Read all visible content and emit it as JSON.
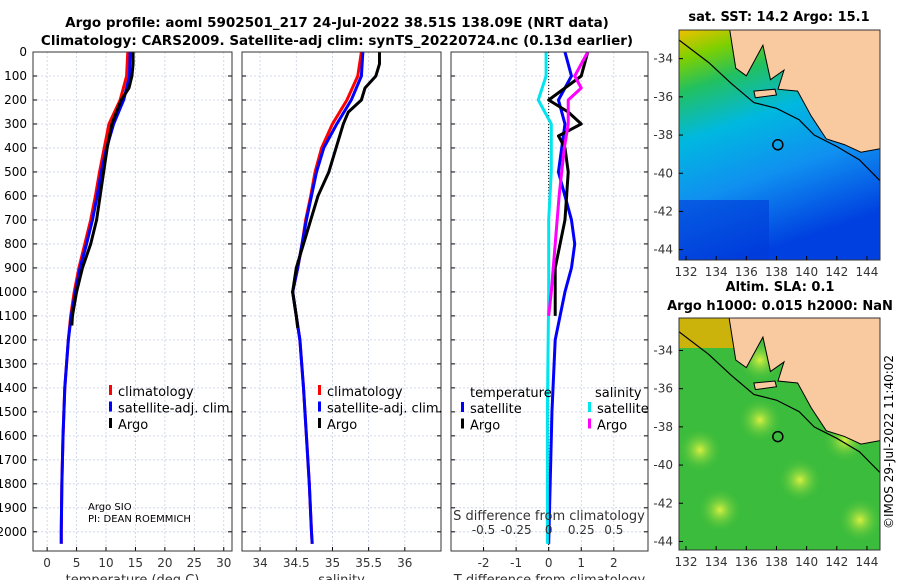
{
  "title_line1": "Argo profile: aoml 5902501_217 24-Jul-2022 38.51S 138.09E (NRT data)",
  "title_line2": "Climatology: CARS2009. Satellite-adj clim: synTS_20220724.nc (0.13d earlier)",
  "colors": {
    "climatology": "#ff0000",
    "satellite": "#0000ff",
    "argo": "#000000",
    "s_satellite": "#00e5ee",
    "s_argo": "#ff00ff",
    "land": "#f9c9a0"
  },
  "chart_data": [
    {
      "type": "line",
      "id": "temperature",
      "xlabel": "temperature (deg C)",
      "ylabel": "",
      "xlim": [
        -2.4,
        31.4
      ],
      "ylim": [
        2080,
        0
      ],
      "xticks": [
        0,
        5,
        10,
        15,
        20,
        25,
        30
      ],
      "yticks": [
        0,
        100,
        200,
        300,
        400,
        500,
        600,
        700,
        800,
        900,
        1000,
        1100,
        1200,
        1300,
        1400,
        1500,
        1600,
        1700,
        1800,
        1900,
        2000
      ],
      "legend": [
        "climatology",
        "satellite-adj. clim.",
        "Argo"
      ],
      "annotation": [
        "Argo SIO",
        "PI: DEAN ROEMMICH"
      ],
      "series": [
        {
          "name": "climatology",
          "color": "#ff0000",
          "depth": [
            0,
            100,
            200,
            300,
            400,
            500,
            600,
            700,
            800,
            900,
            1000,
            1100,
            1200,
            1400,
            1600,
            1800,
            2000,
            2050
          ],
          "values": [
            13.7,
            13.5,
            12.4,
            10.5,
            9.7,
            8.9,
            8.2,
            7.4,
            6.4,
            5.4,
            4.6,
            4.0,
            3.6,
            3.0,
            2.7,
            2.5,
            2.4,
            2.4
          ]
        },
        {
          "name": "satellite-adj. clim.",
          "color": "#0000ff",
          "depth": [
            0,
            100,
            200,
            300,
            400,
            500,
            600,
            700,
            800,
            900,
            1000,
            1100,
            1200,
            1400,
            1600,
            1800,
            2000,
            2050
          ],
          "values": [
            14.1,
            14.0,
            13.0,
            11.3,
            10.1,
            9.2,
            8.5,
            7.7,
            6.7,
            5.6,
            4.8,
            4.1,
            3.6,
            3.0,
            2.7,
            2.5,
            2.4,
            2.4
          ]
        },
        {
          "name": "Argo",
          "color": "#000000",
          "depth": [
            0,
            50,
            100,
            150,
            200,
            250,
            300,
            400,
            500,
            600,
            700,
            800,
            900,
            1000,
            1100,
            1140
          ],
          "values": [
            14.6,
            14.6,
            14.4,
            13.9,
            12.6,
            11.8,
            11.0,
            10.2,
            9.6,
            9.0,
            8.4,
            7.4,
            6.0,
            5.0,
            4.3,
            4.2
          ]
        }
      ]
    },
    {
      "type": "line",
      "id": "salinity",
      "xlabel": "salinity",
      "ylabel": "",
      "xlim": [
        33.75,
        36.5
      ],
      "ylim": [
        2080,
        0
      ],
      "xticks": [
        34,
        34.5,
        35,
        35.5,
        36
      ],
      "legend": [
        "climatology",
        "satellite-adj. clim.",
        "Argo"
      ],
      "series": [
        {
          "name": "climatology",
          "color": "#ff0000",
          "depth": [
            0,
            100,
            200,
            300,
            400,
            500,
            600,
            700,
            800,
            900,
            1000,
            1100,
            1200,
            1400,
            1600,
            1800,
            2000,
            2050
          ],
          "values": [
            35.4,
            35.35,
            35.2,
            35.0,
            34.85,
            34.76,
            34.7,
            34.63,
            34.58,
            34.52,
            34.45,
            34.5,
            34.55,
            34.6,
            34.64,
            34.68,
            34.71,
            34.72
          ]
        },
        {
          "name": "satellite-adj. clim.",
          "color": "#0000ff",
          "depth": [
            0,
            100,
            200,
            300,
            400,
            500,
            600,
            700,
            800,
            900,
            1000,
            1100,
            1200,
            1400,
            1600,
            1800,
            2000,
            2050
          ],
          "values": [
            35.42,
            35.4,
            35.26,
            35.06,
            34.88,
            34.78,
            34.71,
            34.64,
            34.58,
            34.52,
            34.45,
            34.5,
            34.55,
            34.6,
            34.64,
            34.68,
            34.71,
            34.72
          ]
        },
        {
          "name": "Argo",
          "color": "#000000",
          "depth": [
            0,
            50,
            100,
            150,
            200,
            250,
            300,
            400,
            500,
            600,
            700,
            800,
            900,
            1000,
            1100,
            1150
          ],
          "values": [
            35.65,
            35.65,
            35.6,
            35.45,
            35.4,
            35.22,
            35.15,
            35.05,
            34.95,
            34.8,
            34.7,
            34.6,
            34.5,
            34.45,
            34.5,
            34.52
          ]
        }
      ]
    },
    {
      "type": "line",
      "id": "difference",
      "xlabel": "T difference from climatology",
      "x2label": "S difference from climatology",
      "xlim": [
        -3,
        3.05
      ],
      "ylim": [
        2080,
        0
      ],
      "xticks": [
        -2,
        -1,
        0,
        1,
        2
      ],
      "x2ticks": [
        -0.5,
        -0.25,
        0,
        0.25,
        0.5
      ],
      "legend_temperature": {
        "title": "temperature",
        "items": [
          "satellite",
          "Argo"
        ]
      },
      "legend_salinity": {
        "title": "salinity",
        "items": [
          "satellite",
          "Argo"
        ]
      },
      "series": [
        {
          "name": "T satellite",
          "color": "#0000ff",
          "depth": [
            0,
            100,
            200,
            300,
            400,
            500,
            600,
            700,
            800,
            900,
            1000,
            1200,
            1500,
            2050
          ],
          "values": [
            0.5,
            0.7,
            0.3,
            0.5,
            0.4,
            0.3,
            0.5,
            0.7,
            0.8,
            0.7,
            0.5,
            0.2,
            0.1,
            0.0
          ]
        },
        {
          "name": "T Argo",
          "color": "#000000",
          "depth": [
            0,
            50,
            100,
            200,
            250,
            300,
            350,
            400,
            500,
            700,
            900,
            1100
          ],
          "values": [
            1.2,
            1.1,
            1.0,
            0.0,
            0.6,
            1.0,
            0.3,
            0.5,
            0.6,
            0.5,
            0.2,
            0.2
          ]
        },
        {
          "name": "S satellite",
          "color": "#00e5ee",
          "unit": "S",
          "depth": [
            0,
            100,
            200,
            300,
            500,
            700,
            1000,
            1500,
            2050
          ],
          "values": [
            -0.02,
            -0.02,
            -0.08,
            0.02,
            0.02,
            0.0,
            0.0,
            -0.01,
            -0.01
          ]
        },
        {
          "name": "S Argo",
          "color": "#ff00ff",
          "unit": "S",
          "depth": [
            0,
            50,
            100,
            150,
            200,
            300,
            400,
            600,
            800,
            1000,
            1100
          ],
          "values": [
            0.3,
            0.25,
            0.2,
            0.25,
            0.15,
            0.15,
            0.12,
            0.08,
            0.05,
            0.02,
            0.0
          ]
        }
      ]
    }
  ],
  "maps": [
    {
      "title": [
        "sat. SST: 14.2 Argo: 15.1"
      ],
      "lon_ticks": [
        132,
        134,
        136,
        138,
        140,
        142,
        144
      ],
      "lat_ticks": [
        -34,
        -36,
        -38,
        -40,
        -42,
        -44
      ],
      "argo": [
        138.09,
        -38.51
      ]
    },
    {
      "title": [
        "Altim. SLA: 0.1",
        "Argo h1000: 0.015 h2000: NaN"
      ],
      "lon_ticks": [
        132,
        134,
        136,
        138,
        140,
        142,
        144
      ],
      "lat_ticks": [
        -34,
        -36,
        -38,
        -40,
        -42,
        -44
      ],
      "argo": [
        138.09,
        -38.51
      ]
    }
  ],
  "credit": "©IMOS 29-Jul-2022 11:40:02"
}
